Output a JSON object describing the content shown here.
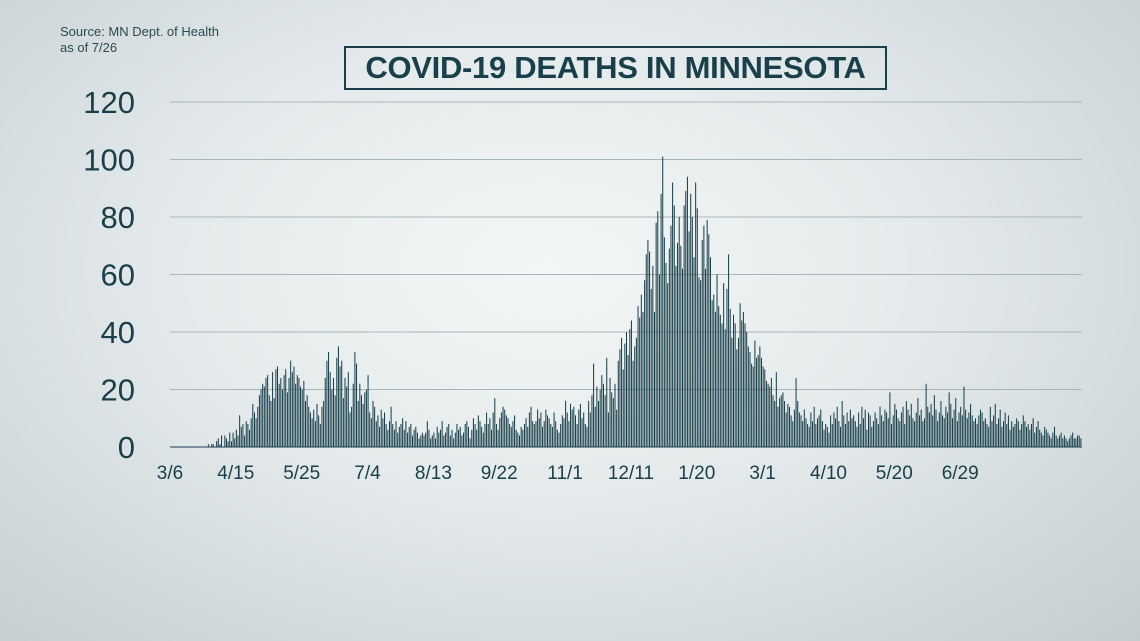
{
  "source": {
    "line1": "Source: MN Dept. of Health",
    "line2": "as of 7/26"
  },
  "chart_data": {
    "type": "bar",
    "title": "COVID-19 DEATHS IN MINNESOTA",
    "xlabel": "",
    "ylabel": "",
    "ylim": [
      0,
      120
    ],
    "yticks": [
      0,
      20,
      40,
      60,
      80,
      100,
      120
    ],
    "grid": true,
    "bar_color": "#183f4a",
    "start_date": "3/6",
    "x_tick_labels": [
      "3/6",
      "4/15",
      "5/25",
      "7/4",
      "8/13",
      "9/22",
      "11/1",
      "12/11",
      "1/20",
      "3/1",
      "4/10",
      "5/20",
      "6/29"
    ],
    "values": [
      0,
      0,
      0,
      0,
      0,
      0,
      0,
      0,
      0,
      0,
      0,
      0,
      0,
      0,
      0,
      0,
      0,
      0,
      0,
      0,
      0,
      0,
      0,
      1,
      0,
      1,
      1,
      0,
      2,
      3,
      1,
      4,
      0,
      4,
      3,
      2,
      5,
      2,
      5,
      3,
      6,
      4,
      11,
      7,
      8,
      4,
      9,
      8,
      6,
      10,
      15,
      12,
      10,
      14,
      18,
      20,
      22,
      21,
      24,
      25,
      18,
      16,
      26,
      17,
      27,
      28,
      22,
      24,
      20,
      25,
      27,
      19,
      24,
      30,
      26,
      28,
      22,
      25,
      24,
      21,
      20,
      23,
      16,
      18,
      14,
      12,
      10,
      13,
      9,
      15,
      11,
      8,
      14,
      16,
      24,
      30,
      33,
      26,
      20,
      24,
      18,
      31,
      35,
      28,
      30,
      17,
      24,
      21,
      26,
      12,
      14,
      22,
      33,
      29,
      16,
      22,
      18,
      15,
      19,
      20,
      25,
      12,
      10,
      16,
      14,
      9,
      11,
      7,
      13,
      10,
      12,
      8,
      6,
      9,
      14,
      8,
      6,
      9,
      5,
      7,
      8,
      10,
      6,
      9,
      5,
      7,
      8,
      4,
      6,
      7,
      5,
      3,
      4,
      5,
      4,
      5,
      9,
      6,
      3,
      4,
      5,
      3,
      7,
      5,
      6,
      9,
      4,
      5,
      7,
      8,
      4,
      6,
      3,
      5,
      8,
      6,
      7,
      4,
      5,
      8,
      9,
      7,
      3,
      6,
      10,
      8,
      6,
      11,
      9,
      7,
      5,
      8,
      12,
      8,
      10,
      6,
      12,
      17,
      8,
      6,
      10,
      12,
      14,
      13,
      11,
      10,
      8,
      7,
      9,
      11,
      6,
      5,
      4,
      7,
      6,
      8,
      10,
      7,
      12,
      14,
      9,
      8,
      9,
      13,
      10,
      12,
      7,
      9,
      13,
      11,
      10,
      8,
      7,
      12,
      9,
      6,
      5,
      8,
      11,
      10,
      16,
      12,
      9,
      15,
      13,
      14,
      11,
      8,
      13,
      15,
      10,
      12,
      8,
      7,
      16,
      12,
      18,
      29,
      14,
      21,
      16,
      20,
      25,
      22,
      18,
      31,
      12,
      24,
      19,
      17,
      22,
      13,
      30,
      34,
      38,
      27,
      36,
      40,
      32,
      41,
      44,
      30,
      35,
      38,
      49,
      45,
      53,
      47,
      58,
      67,
      72,
      68,
      55,
      63,
      47,
      78,
      82,
      60,
      88,
      101,
      73,
      64,
      57,
      69,
      77,
      92,
      84,
      63,
      71,
      80,
      70,
      62,
      84,
      89,
      94,
      75,
      88,
      80,
      66,
      92,
      83,
      59,
      58,
      72,
      77,
      62,
      79,
      74,
      66,
      51,
      53,
      47,
      60,
      49,
      46,
      43,
      57,
      41,
      55,
      67,
      48,
      38,
      46,
      43,
      34,
      38,
      50,
      44,
      47,
      43,
      40,
      35,
      33,
      29,
      28,
      37,
      31,
      32,
      35,
      31,
      28,
      27,
      23,
      22,
      21,
      24,
      18,
      16,
      26,
      14,
      17,
      18,
      19,
      16,
      12,
      15,
      14,
      11,
      9,
      13,
      24,
      16,
      12,
      11,
      9,
      13,
      10,
      8,
      7,
      12,
      9,
      14,
      8,
      10,
      11,
      13,
      9,
      6,
      8,
      7,
      5,
      11,
      8,
      12,
      10,
      14,
      9,
      7,
      16,
      11,
      8,
      12,
      9,
      13,
      10,
      11,
      9,
      7,
      12,
      8,
      14,
      10,
      13,
      6,
      12,
      11,
      7,
      9,
      12,
      10,
      8,
      14,
      11,
      9,
      13,
      12,
      10,
      19,
      8,
      11,
      15,
      13,
      10,
      9,
      12,
      14,
      8,
      16,
      13,
      11,
      15,
      10,
      9,
      12,
      17,
      11,
      13,
      9,
      10,
      22,
      14,
      12,
      15,
      11,
      18,
      13,
      9,
      12,
      16,
      11,
      10,
      14,
      12,
      19,
      15,
      10,
      13,
      17,
      9,
      12,
      14,
      11,
      21,
      13,
      10,
      12,
      15,
      11,
      9,
      10,
      8,
      11,
      13,
      12,
      9,
      10,
      8,
      7,
      14,
      9,
      11,
      15,
      8,
      10,
      13,
      7,
      9,
      12,
      8,
      11,
      6,
      9,
      7,
      8,
      10,
      9,
      6,
      8,
      11,
      9,
      7,
      8,
      6,
      8,
      10,
      5,
      7,
      9,
      6,
      5,
      4,
      7,
      6,
      5,
      4,
      3,
      5,
      7,
      4,
      3,
      4,
      5,
      3,
      4,
      3,
      2,
      3,
      4,
      5,
      3,
      3,
      4,
      4,
      3
    ],
    "estimated": true
  }
}
